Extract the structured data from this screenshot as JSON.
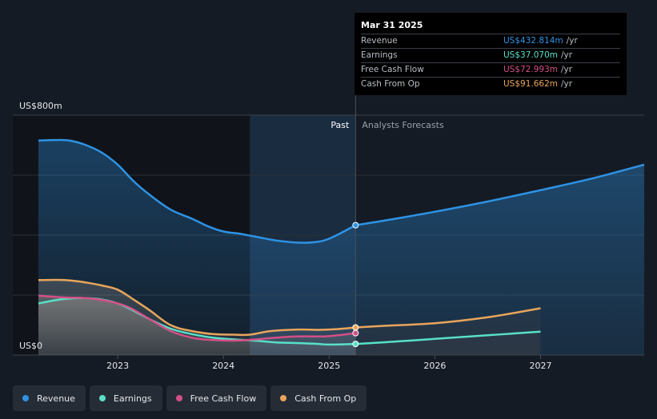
{
  "chart_data": {
    "type": "area",
    "y_unit_label_top": "US$800m",
    "y_unit_label_bottom": "US$0",
    "ylim": [
      0,
      800
    ],
    "xlim": [
      2022.25,
      2027.98
    ],
    "x_ticks": [
      {
        "value": 2023,
        "label": "2023"
      },
      {
        "value": 2024,
        "label": "2024"
      },
      {
        "value": 2025,
        "label": "2025"
      },
      {
        "value": 2026,
        "label": "2026"
      },
      {
        "value": 2027,
        "label": "2027"
      }
    ],
    "past_label": "Past",
    "forecast_label": "Analysts Forecasts",
    "past_end_x": 2025.25,
    "shaded_start_x": 2024.25,
    "series": [
      {
        "name": "Revenue",
        "color": "#2e93e5",
        "past": [
          [
            2022.25,
            715
          ],
          [
            2022.4,
            717
          ],
          [
            2022.55,
            715
          ],
          [
            2022.7,
            700
          ],
          [
            2022.85,
            675
          ],
          [
            2023.0,
            635
          ],
          [
            2023.15,
            580
          ],
          [
            2023.3,
            535
          ],
          [
            2023.5,
            485
          ],
          [
            2023.7,
            455
          ],
          [
            2023.85,
            430
          ],
          [
            2024.0,
            412
          ],
          [
            2024.15,
            405
          ],
          [
            2024.3,
            395
          ],
          [
            2024.5,
            382
          ],
          [
            2024.7,
            375
          ],
          [
            2024.85,
            376
          ],
          [
            2025.0,
            388
          ],
          [
            2025.25,
            433
          ]
        ],
        "forecast": [
          [
            2025.25,
            433
          ],
          [
            2025.6,
            453
          ],
          [
            2026.0,
            478
          ],
          [
            2026.5,
            512
          ],
          [
            2027.0,
            550
          ],
          [
            2027.5,
            590
          ],
          [
            2027.98,
            635
          ]
        ]
      },
      {
        "name": "Earnings",
        "color": "#58e0c8",
        "past": [
          [
            2022.25,
            172
          ],
          [
            2022.45,
            185
          ],
          [
            2022.65,
            190
          ],
          [
            2022.85,
            185
          ],
          [
            2023.05,
            165
          ],
          [
            2023.3,
            120
          ],
          [
            2023.5,
            88
          ],
          [
            2023.7,
            70
          ],
          [
            2023.9,
            58
          ],
          [
            2024.1,
            52
          ],
          [
            2024.3,
            48
          ],
          [
            2024.5,
            42
          ],
          [
            2024.7,
            40
          ],
          [
            2024.9,
            37
          ],
          [
            2025.0,
            35
          ],
          [
            2025.25,
            37
          ]
        ],
        "forecast": [
          [
            2025.25,
            37
          ],
          [
            2025.5,
            42
          ],
          [
            2026.0,
            54
          ],
          [
            2026.5,
            66
          ],
          [
            2027.0,
            78
          ]
        ]
      },
      {
        "name": "Free Cash Flow",
        "color": "#d34f86",
        "past": [
          [
            2022.25,
            198
          ],
          [
            2022.5,
            192
          ],
          [
            2022.7,
            190
          ],
          [
            2022.9,
            180
          ],
          [
            2023.1,
            160
          ],
          [
            2023.3,
            120
          ],
          [
            2023.5,
            80
          ],
          [
            2023.7,
            58
          ],
          [
            2023.9,
            50
          ],
          [
            2024.1,
            48
          ],
          [
            2024.3,
            52
          ],
          [
            2024.5,
            58
          ],
          [
            2024.7,
            62
          ],
          [
            2024.9,
            62
          ],
          [
            2025.0,
            63
          ],
          [
            2025.25,
            73
          ]
        ],
        "forecast": []
      },
      {
        "name": "Cash From Op",
        "color": "#e9a55b",
        "past": [
          [
            2022.25,
            250
          ],
          [
            2022.5,
            250
          ],
          [
            2022.7,
            242
          ],
          [
            2022.85,
            232
          ],
          [
            2023.0,
            218
          ],
          [
            2023.15,
            185
          ],
          [
            2023.3,
            150
          ],
          [
            2023.5,
            100
          ],
          [
            2023.7,
            80
          ],
          [
            2023.9,
            70
          ],
          [
            2024.1,
            68
          ],
          [
            2024.25,
            68
          ],
          [
            2024.45,
            80
          ],
          [
            2024.7,
            85
          ],
          [
            2024.9,
            84
          ],
          [
            2025.05,
            86
          ],
          [
            2025.25,
            92
          ]
        ],
        "forecast": [
          [
            2025.25,
            92
          ],
          [
            2025.5,
            97
          ],
          [
            2026.0,
            106
          ],
          [
            2026.5,
            126
          ],
          [
            2027.0,
            156
          ]
        ]
      }
    ]
  },
  "tooltip": {
    "date": "Mar 31 2025",
    "unit": "/yr",
    "rows": [
      {
        "label": "Revenue",
        "value": "US$432.814m",
        "color": "#2e93e5"
      },
      {
        "label": "Earnings",
        "value": "US$37.070m",
        "color": "#58e0c8"
      },
      {
        "label": "Free Cash Flow",
        "value": "US$72.993m",
        "color": "#d34f86"
      },
      {
        "label": "Cash From Op",
        "value": "US$91.662m",
        "color": "#e9a55b"
      }
    ]
  },
  "legend": [
    {
      "label": "Revenue",
      "color": "#2e93e5"
    },
    {
      "label": "Earnings",
      "color": "#58e0c8"
    },
    {
      "label": "Free Cash Flow",
      "color": "#d34f86"
    },
    {
      "label": "Cash From Op",
      "color": "#e9a55b"
    }
  ]
}
